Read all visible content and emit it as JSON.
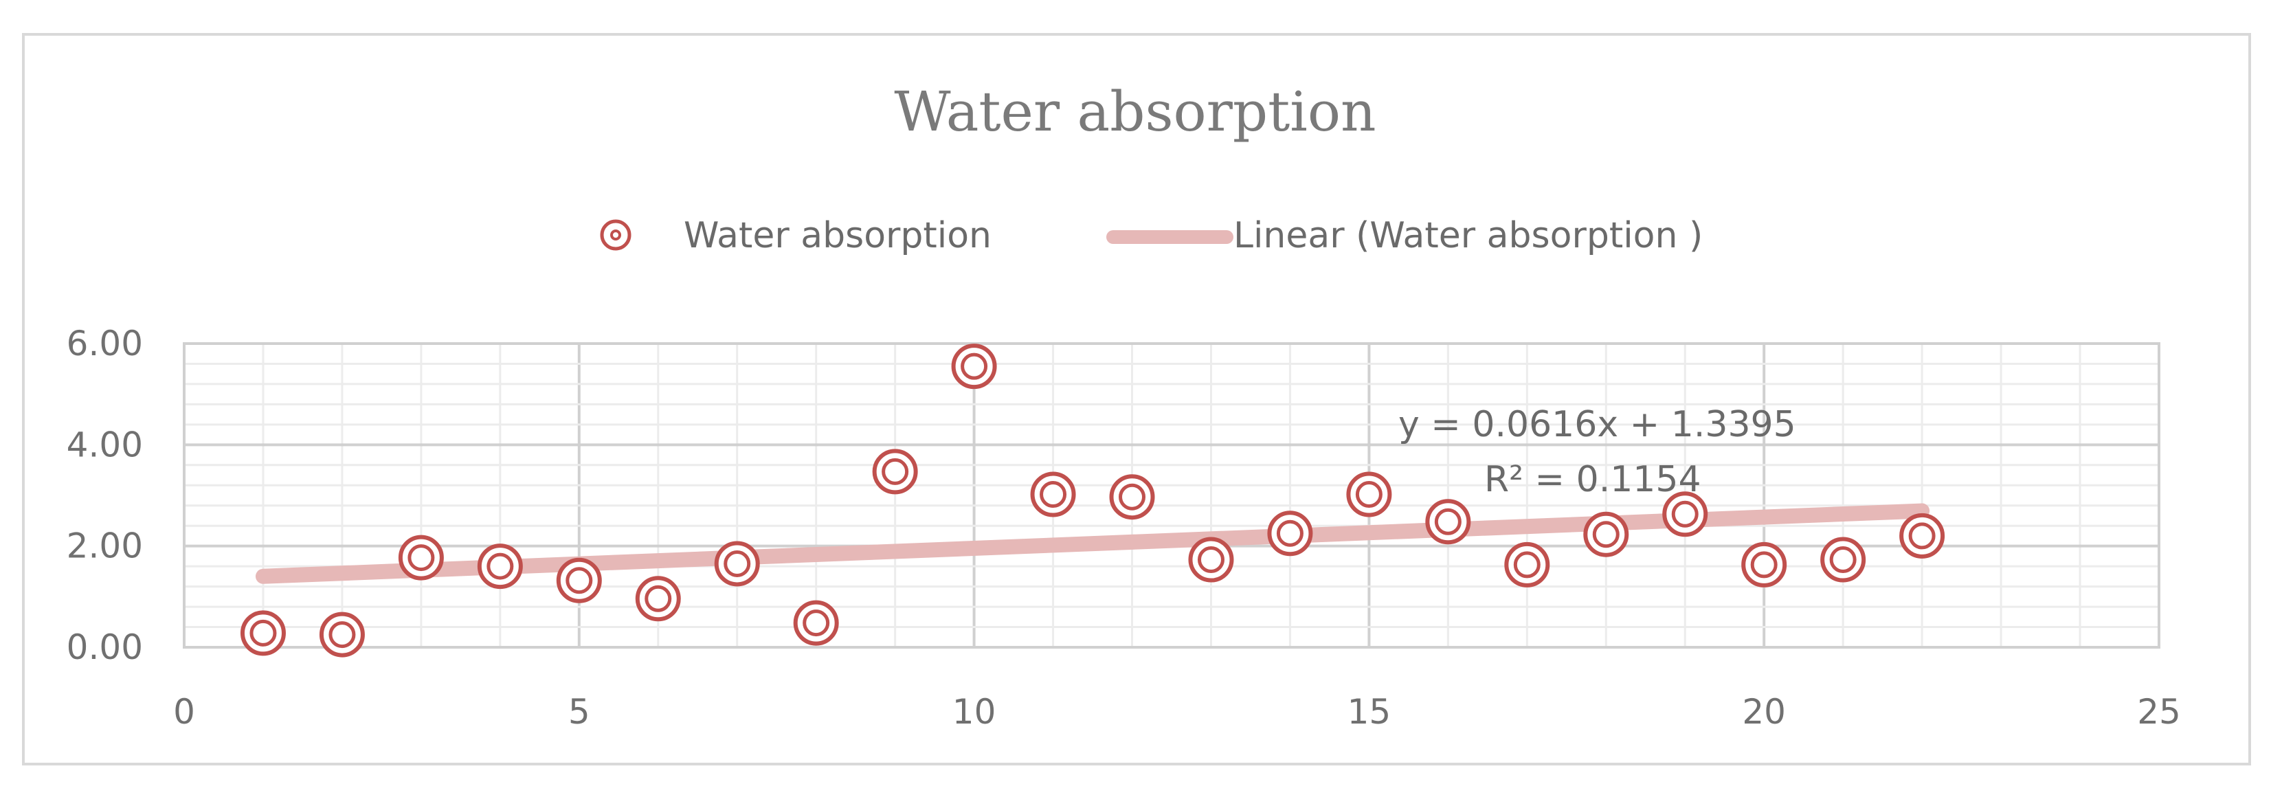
{
  "chart_data": {
    "type": "scatter",
    "title": "Water absorption",
    "xlabel": "",
    "ylabel": "",
    "xlim": [
      0,
      25
    ],
    "ylim": [
      0,
      6
    ],
    "x_ticks": [
      0,
      5,
      10,
      15,
      20,
      25
    ],
    "y_ticks": [
      "0.00",
      "2.00",
      "4.00",
      "6.00"
    ],
    "grid": "major and minor on both axes",
    "legend_position": "top",
    "series": [
      {
        "name": "Water absorption",
        "color": "#c0504d",
        "x": [
          1,
          2,
          3,
          4,
          5,
          6,
          7,
          8,
          9,
          10,
          11,
          12,
          13,
          14,
          15,
          16,
          17,
          18,
          19,
          20,
          21,
          22
        ],
        "y": [
          0.28,
          0.25,
          1.77,
          1.6,
          1.32,
          0.96,
          1.65,
          0.48,
          3.47,
          5.55,
          3.02,
          2.97,
          1.73,
          2.25,
          3.02,
          2.48,
          1.63,
          2.23,
          2.63,
          1.63,
          1.73,
          2.2
        ]
      }
    ],
    "trendline": {
      "name": "Linear (Water absorption )",
      "color": "#e6b8b7",
      "slope": 0.0616,
      "intercept": 1.3395,
      "x_range": [
        1,
        22
      ],
      "equation": "y = 0.0616x + 1.3395",
      "r_squared": "R² = 0.1154"
    }
  }
}
